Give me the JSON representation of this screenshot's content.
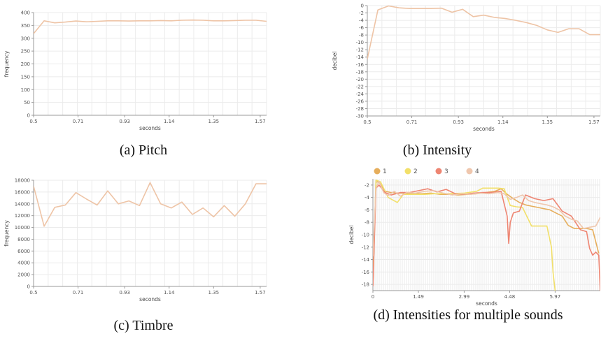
{
  "chart_data": [
    {
      "id": "a",
      "type": "line",
      "caption": "(a) Pitch",
      "xlabel": "seconds",
      "ylabel": "frequency",
      "xlim": [
        0.5,
        1.6
      ],
      "ylim": [
        0,
        400
      ],
      "xticks": [
        "0.5",
        "0.71",
        "0.93",
        "1.14",
        "1.35",
        "1.57"
      ],
      "yticks": [
        "0",
        "50",
        "100",
        "150",
        "200",
        "250",
        "300",
        "350",
        "400"
      ],
      "grid": true,
      "series": [
        {
          "color": "#eec4a6",
          "x": [
            0.5,
            0.55,
            0.6,
            0.65,
            0.7,
            0.75,
            0.8,
            0.85,
            0.9,
            0.95,
            1.0,
            1.05,
            1.1,
            1.15,
            1.2,
            1.25,
            1.3,
            1.35,
            1.4,
            1.45,
            1.5,
            1.55,
            1.6
          ],
          "y": [
            318,
            368,
            360,
            363,
            367,
            364,
            366,
            368,
            368,
            367,
            368,
            368,
            369,
            368,
            370,
            371,
            370,
            368,
            368,
            369,
            370,
            370,
            366
          ]
        }
      ]
    },
    {
      "id": "b",
      "type": "line",
      "caption": "(b) Intensity",
      "xlabel": "seconds",
      "ylabel": "decibel",
      "xlim": [
        0.5,
        1.6
      ],
      "ylim": [
        -30,
        0
      ],
      "xticks": [
        "0.5",
        "0.71",
        "0.93",
        "1.14",
        "1.35",
        "1.57"
      ],
      "yticks": [
        "0",
        "-2",
        "-4",
        "-6",
        "-8",
        "-10",
        "-12",
        "-14",
        "-16",
        "-18",
        "-20",
        "-22",
        "-24",
        "-26",
        "-28",
        "-30"
      ],
      "grid": true,
      "series": [
        {
          "color": "#eec4a6",
          "x": [
            0.5,
            0.55,
            0.6,
            0.65,
            0.7,
            0.75,
            0.8,
            0.85,
            0.9,
            0.95,
            1.0,
            1.05,
            1.1,
            1.15,
            1.2,
            1.25,
            1.3,
            1.35,
            1.4,
            1.45,
            1.5,
            1.55,
            1.6
          ],
          "y": [
            -14.5,
            -1.2,
            -0.1,
            -0.6,
            -0.8,
            -0.8,
            -0.8,
            -0.7,
            -1.8,
            -1.0,
            -3.0,
            -2.6,
            -3.2,
            -3.5,
            -4.0,
            -4.6,
            -5.4,
            -6.6,
            -7.3,
            -6.3,
            -6.3,
            -7.9,
            -7.9
          ]
        }
      ]
    },
    {
      "id": "c",
      "type": "line",
      "caption": "(c) Timbre",
      "xlabel": "seconds",
      "ylabel": "frequency",
      "xlim": [
        0.5,
        1.6
      ],
      "ylim": [
        0,
        18000
      ],
      "xticks": [
        "0.5",
        "0.71",
        "0.93",
        "1.14",
        "1.35",
        "1.57"
      ],
      "yticks": [
        "0",
        "2000",
        "4000",
        "6000",
        "8000",
        "10000",
        "12000",
        "14000",
        "16000",
        "18000"
      ],
      "grid": true,
      "series": [
        {
          "color": "#eec4a6",
          "x": [
            0.5,
            0.55,
            0.6,
            0.65,
            0.7,
            0.75,
            0.8,
            0.85,
            0.9,
            0.95,
            1.0,
            1.05,
            1.1,
            1.15,
            1.2,
            1.25,
            1.3,
            1.35,
            1.4,
            1.45,
            1.5,
            1.55,
            1.6
          ],
          "y": [
            17000,
            10200,
            13400,
            13800,
            15900,
            14800,
            13800,
            16200,
            14000,
            14500,
            13700,
            17600,
            14000,
            13300,
            14300,
            12200,
            13300,
            11800,
            13700,
            11900,
            14000,
            17400,
            17400
          ]
        }
      ]
    },
    {
      "id": "d",
      "type": "line",
      "caption": "(d) Intensities for multiple sounds",
      "xlabel": "seconds",
      "ylabel": "decibel",
      "xlim": [
        0,
        7.45
      ],
      "ylim": [
        -19,
        -1
      ],
      "xticks": [
        "0",
        "1.49",
        "2.99",
        "4.48",
        "5.97"
      ],
      "yticks": [
        "-2",
        "-4",
        "-6",
        "-8",
        "-10",
        "-12",
        "-14",
        "-16",
        "-18"
      ],
      "grid": "dense-vertical",
      "legend_position": "top",
      "series": [
        {
          "name": "1",
          "color": "#e6ae5c",
          "x": [
            0,
            0.1,
            0.2,
            0.4,
            0.6,
            0.8,
            1.0,
            1.3,
            1.6,
            1.9,
            2.2,
            2.5,
            2.8,
            3.1,
            3.4,
            3.7,
            4.0,
            4.2,
            4.4,
            4.6,
            4.8,
            5.0,
            5.2,
            5.4,
            5.6,
            5.8,
            6.0,
            6.2,
            6.4,
            6.6,
            6.8,
            7.0,
            7.2,
            7.4
          ],
          "y": [
            -18,
            -1.5,
            -1.5,
            -3.0,
            -3.2,
            -3.3,
            -3.3,
            -3.4,
            -3.4,
            -3.3,
            -3.5,
            -3.5,
            -3.6,
            -3.5,
            -3.4,
            -3.2,
            -3.0,
            -2.6,
            -3.5,
            -4.2,
            -4.8,
            -5.2,
            -5.4,
            -5.6,
            -5.8,
            -6.0,
            -6.5,
            -7.0,
            -8.5,
            -9.0,
            -9.0,
            -9.0,
            -9.2,
            -13.0
          ]
        },
        {
          "name": "2",
          "color": "#f2e06a",
          "x": [
            0,
            0.1,
            0.25,
            0.5,
            0.8,
            1.0,
            1.3,
            1.7,
            2.0,
            2.5,
            3.0,
            3.4,
            3.6,
            3.8,
            4.1,
            4.3,
            4.5,
            4.7,
            4.9,
            5.2,
            5.5,
            5.7,
            5.85,
            5.9,
            5.97
          ],
          "y": [
            -18,
            -1.2,
            -1.5,
            -4.0,
            -4.8,
            -3.5,
            -3.5,
            -3.5,
            -3.4,
            -3.4,
            -3.3,
            -3.0,
            -2.5,
            -2.5,
            -2.5,
            -2.6,
            -5.3,
            -5.5,
            -5.6,
            -8.6,
            -8.6,
            -8.6,
            -12.0,
            -16.0,
            -19.0
          ]
        },
        {
          "name": "3",
          "color": "#ee8572",
          "x": [
            0,
            0.1,
            0.2,
            0.4,
            0.6,
            0.9,
            1.2,
            1.5,
            1.8,
            2.1,
            2.4,
            2.7,
            3.0,
            3.3,
            3.6,
            3.9,
            4.2,
            4.4,
            4.45,
            4.5,
            4.6,
            4.8,
            5.0,
            5.3,
            5.6,
            5.9,
            6.2,
            6.5,
            6.8,
            7.0,
            7.1,
            7.2,
            7.3,
            7.4,
            7.45
          ],
          "y": [
            -18.3,
            -2.5,
            -2.0,
            -3.2,
            -3.6,
            -3.2,
            -3.2,
            -2.9,
            -2.6,
            -3.1,
            -2.7,
            -3.4,
            -3.5,
            -3.3,
            -3.2,
            -3.2,
            -3.0,
            -7.0,
            -11.4,
            -8.0,
            -6.5,
            -6.2,
            -3.6,
            -4.2,
            -4.5,
            -4.2,
            -6.2,
            -7.0,
            -9.2,
            -9.5,
            -12.2,
            -13.3,
            -12.8,
            -13.3,
            -19.0
          ]
        },
        {
          "name": "4",
          "color": "#efc7ae",
          "x": [
            0,
            0.1,
            0.2,
            0.35,
            0.5,
            0.7,
            0.9,
            1.1,
            1.4,
            1.7,
            2.0,
            2.3,
            2.6,
            2.9,
            3.2,
            3.5,
            3.8,
            4.1,
            4.3,
            4.5,
            4.7,
            4.9,
            5.1,
            5.3,
            5.5,
            5.7,
            5.9,
            6.1,
            6.3,
            6.5,
            6.7,
            6.9,
            7.1,
            7.3,
            7.45
          ],
          "y": [
            -13.5,
            -2.5,
            -1.4,
            -3.2,
            -3.7,
            -3.0,
            -3.8,
            -3.2,
            -3.3,
            -3.0,
            -2.9,
            -3.3,
            -3.6,
            -3.4,
            -3.5,
            -3.3,
            -3.4,
            -3.2,
            -3.4,
            -4.3,
            -4.0,
            -3.6,
            -4.5,
            -4.8,
            -5.0,
            -5.2,
            -5.5,
            -6.0,
            -7.0,
            -7.5,
            -7.8,
            -9.0,
            -8.8,
            -8.6,
            -7.2
          ]
        }
      ]
    }
  ]
}
